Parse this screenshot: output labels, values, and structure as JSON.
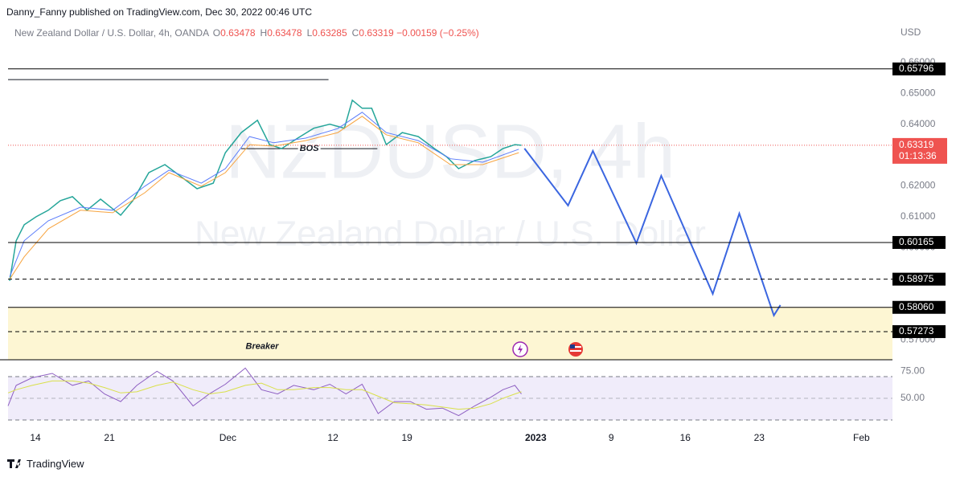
{
  "header": {
    "publisher": "Danny_Fanny published on TradingView.com, Dec 30, 2022 00:46 UTC"
  },
  "chart_data": [
    {
      "type": "line",
      "title": "New Zealand Dollar / U.S. Dollar, 4h, OANDA",
      "ohlc": [
        {
          "label": "O",
          "value": 0.63478
        },
        {
          "label": "H",
          "value": 0.63478
        },
        {
          "label": "L",
          "value": 0.63285
        },
        {
          "label": "C",
          "value": 0.63319
        }
      ],
      "change": "−0.00159 (−0.25%)",
      "watermark": [
        "NZDUSD, 4h",
        "New Zealand Dollar / U.S. Dollar"
      ],
      "currency": "USD",
      "xlim": [
        -1.85,
        57.9
      ],
      "xticks": [
        {
          "value": 0,
          "label": "14"
        },
        {
          "value": 5,
          "label": "21"
        },
        {
          "value": 13,
          "label": "Dec"
        },
        {
          "value": 20.1,
          "label": "12"
        },
        {
          "value": 25.1,
          "label": "19"
        },
        {
          "value": 33.8,
          "label": "2023"
        },
        {
          "value": 38.9,
          "label": "9"
        },
        {
          "value": 43.9,
          "label": "16"
        },
        {
          "value": 48.9,
          "label": "23"
        },
        {
          "value": 55.8,
          "label": "Feb"
        }
      ],
      "ylim": [
        0.5636,
        0.6725
      ],
      "yticks": [
        {
          "value": 0.57,
          "label": "0.57000"
        },
        {
          "value": 0.6,
          "label": "0.60000"
        },
        {
          "value": 0.61,
          "label": "0.61000"
        },
        {
          "value": 0.62,
          "label": "0.62000"
        },
        {
          "value": 0.64,
          "label": "0.64000"
        },
        {
          "value": 0.65,
          "label": "0.65000"
        },
        {
          "value": 0.66,
          "label": "0.66000"
        }
      ],
      "series": [
        {
          "color": "#26a69a",
          "width": 1.5,
          "x": [
            -1.74,
            -1.3,
            -0.76,
            0.05,
            0.87,
            1.68,
            2.5,
            3.48,
            4.4,
            5.76,
            6.58,
            7.66,
            8.75,
            9.84,
            10.92,
            12.01,
            12.83,
            13.91,
            15,
            15.82,
            16.63,
            17.72,
            18.8,
            19.89,
            20.87,
            21.41,
            22.07,
            22.72,
            23.7,
            24.78,
            25.87,
            26.96,
            27.77,
            28.59,
            29.67,
            30.76,
            31.58,
            32.39,
            32.83
          ],
          "values": [
            0.5892,
            0.6022,
            0.6074,
            0.61,
            0.6121,
            0.6152,
            0.6165,
            0.6121,
            0.6157,
            0.6105,
            0.6152,
            0.6243,
            0.6269,
            0.623,
            0.6191,
            0.6209,
            0.6308,
            0.6373,
            0.6413,
            0.6334,
            0.6321,
            0.6355,
            0.6387,
            0.64,
            0.6387,
            0.6478,
            0.6452,
            0.6452,
            0.6334,
            0.6373,
            0.636,
            0.6321,
            0.6295,
            0.6256,
            0.6282,
            0.6295,
            0.6321,
            0.6334,
            0.63319
          ]
        },
        {
          "color": "#5b7cfa",
          "width": 1,
          "x": [
            -1.74,
            -0.76,
            0.87,
            3.04,
            5.22,
            7.39,
            9.02,
            11.2,
            12.83,
            14.46,
            16.09,
            18.26,
            20.43,
            22.07,
            23.7,
            25.87,
            28.04,
            30.22,
            32.66
          ],
          "values": [
            0.5905,
            0.6022,
            0.6087,
            0.6131,
            0.6121,
            0.6199,
            0.6251,
            0.6209,
            0.6256,
            0.636,
            0.634,
            0.6355,
            0.6386,
            0.6439,
            0.6373,
            0.6347,
            0.6288,
            0.6277,
            0.6319
          ]
        },
        {
          "color": "#f7a440",
          "width": 1,
          "x": [
            -1.74,
            -0.76,
            0.87,
            3.04,
            5.22,
            7.39,
            9.02,
            11.2,
            12.83,
            14.46,
            16.09,
            18.26,
            20.43,
            22.07,
            23.7,
            25.87,
            28.04,
            30.22,
            32.66
          ],
          "values": [
            0.5897,
            0.597,
            0.6061,
            0.6121,
            0.6113,
            0.6178,
            0.6243,
            0.6199,
            0.6243,
            0.6334,
            0.6329,
            0.6347,
            0.6373,
            0.6426,
            0.6366,
            0.634,
            0.6269,
            0.6269,
            0.6308
          ]
        },
        {
          "color": "#3b66e0",
          "width": 2,
          "x": [
            33.04,
            35.98,
            37.66,
            40.6,
            42.28,
            45.76,
            47.55,
            49.89,
            50.33
          ],
          "values": [
            0.63214,
            0.61365,
            0.63135,
            0.60141,
            0.62328,
            0.585,
            0.61104,
            0.57797,
            0.58135
          ]
        }
      ],
      "levels": [
        {
          "value": 0.65796,
          "dash": false
        },
        {
          "value": 0.60165,
          "dash": false
        },
        {
          "value": 0.58975,
          "dash": true
        },
        {
          "value": {
            "value": 0.5806,
            "label": "0.58060"
          },
          "dash": false
        },
        {
          "value": 0.57273,
          "dash": true
        }
      ],
      "last_price": 0.63319,
      "countdown": "01:13:36",
      "lines": [
        {
          "value": 0.6545,
          "x": [
            -1.85,
            19.8
          ]
        },
        {
          "value": 0.6321,
          "x": [
            13.9,
            23.1
          ],
          "label": "BOS"
        }
      ],
      "zone": {
        "top": 0.5806,
        "label": "Breaker",
        "color": "#fdf6d3"
      }
    },
    {
      "type": "line",
      "xlim": [
        -1.85,
        57.9
      ],
      "ylim": [
        21,
        79
      ],
      "yticks": [
        {
          "value": 50,
          "label": "50.00"
        },
        {
          "value": 75,
          "label": "75.00"
        }
      ],
      "bands": [
        30,
        70
      ],
      "series": [
        {
          "color": "#8e5fc2",
          "width": 1,
          "x": [
            -1.85,
            -1.3,
            -0.22,
            1.14,
            2.5,
            3.59,
            4.67,
            5.76,
            6.85,
            8.21,
            9.29,
            10.65,
            11.74,
            12.83,
            14.18,
            15.27,
            16.36,
            17.45,
            18.8,
            19.89,
            20.98,
            22.07,
            23.15,
            24.24,
            25.33,
            26.41,
            27.5,
            28.59,
            29.67,
            30.76,
            31.58,
            32.39,
            32.83
          ],
          "values": [
            43,
            62,
            69,
            73,
            62,
            66,
            54,
            47,
            62,
            75,
            66,
            43,
            54,
            63,
            78,
            58,
            54,
            62,
            58,
            63,
            54,
            63,
            36,
            47,
            47,
            40,
            41,
            34,
            43,
            51,
            58,
            62,
            54
          ]
        },
        {
          "color": "#d9e04a",
          "width": 1,
          "x": [
            -1.85,
            -1.3,
            -0.22,
            1.14,
            2.5,
            3.59,
            4.67,
            5.76,
            6.85,
            8.21,
            9.29,
            10.65,
            11.74,
            12.83,
            14.18,
            15.27,
            16.36,
            17.45,
            18.8,
            19.89,
            20.98,
            22.07,
            23.15,
            24.24,
            25.33,
            26.41,
            27.5,
            28.59,
            29.67,
            30.76,
            31.58,
            32.39,
            32.83
          ],
          "values": [
            55,
            58,
            62,
            66,
            66,
            64,
            60,
            55,
            56,
            62,
            65,
            58,
            54,
            56,
            62,
            64,
            58,
            58,
            60,
            60,
            58,
            58,
            52,
            46,
            45,
            44,
            42,
            40,
            41,
            45,
            50,
            54,
            56
          ]
        }
      ]
    }
  ],
  "footer": {
    "brand": "TradingView"
  }
}
